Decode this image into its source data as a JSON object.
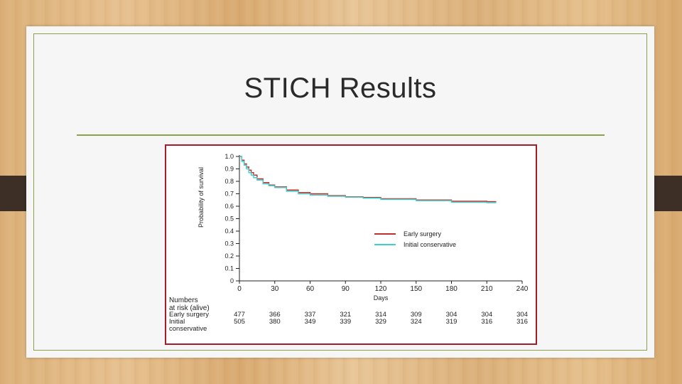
{
  "slide": {
    "title": "STICH Results"
  },
  "chart_data": {
    "type": "line",
    "xlabel": "Days",
    "ylabel": "Probability of survival",
    "xlim": [
      0,
      240
    ],
    "ylim": [
      0,
      1.0
    ],
    "x_ticks": [
      "0",
      "30",
      "60",
      "90",
      "120",
      "150",
      "180",
      "210",
      "240"
    ],
    "y_ticks": [
      "0",
      "0.1",
      "0.2",
      "0.3",
      "0.4",
      "0.5",
      "0.6",
      "0.7",
      "0.8",
      "0.9",
      "1.0"
    ],
    "legend_position": "right, below curves",
    "colors": {
      "early_surgery": "#c0302a",
      "initial_conservative": "#3ecfcf"
    },
    "series": [
      {
        "name": "Early surgery",
        "x": [
          0,
          2,
          4,
          6,
          8,
          10,
          12,
          15,
          20,
          25,
          30,
          40,
          50,
          60,
          75,
          90,
          105,
          120,
          150,
          180,
          210,
          218
        ],
        "y": [
          1.0,
          0.97,
          0.94,
          0.915,
          0.89,
          0.87,
          0.85,
          0.82,
          0.79,
          0.77,
          0.755,
          0.73,
          0.71,
          0.7,
          0.685,
          0.675,
          0.67,
          0.66,
          0.65,
          0.64,
          0.637,
          0.637
        ]
      },
      {
        "name": "Initial conservative",
        "x": [
          0,
          2,
          4,
          6,
          8,
          10,
          12,
          15,
          20,
          25,
          30,
          40,
          50,
          60,
          75,
          90,
          105,
          120,
          150,
          180,
          210,
          218
        ],
        "y": [
          1.0,
          0.96,
          0.93,
          0.9,
          0.87,
          0.85,
          0.83,
          0.81,
          0.78,
          0.765,
          0.75,
          0.72,
          0.7,
          0.69,
          0.68,
          0.672,
          0.665,
          0.655,
          0.645,
          0.632,
          0.628,
          0.628
        ]
      }
    ],
    "at_risk": {
      "header": [
        "Numbers",
        "at risk (alive)"
      ],
      "days": [
        0,
        30,
        60,
        90,
        120,
        150,
        180,
        210,
        240
      ],
      "rows": [
        {
          "label": [
            "Early surgery"
          ],
          "values": [
            "477",
            "366",
            "337",
            "321",
            "314",
            "309",
            "304",
            "304",
            "304"
          ]
        },
        {
          "label": [
            "Initial",
            "conservative"
          ],
          "values": [
            "505",
            "380",
            "349",
            "339",
            "329",
            "324",
            "319",
            "316",
            "316"
          ]
        }
      ]
    }
  }
}
